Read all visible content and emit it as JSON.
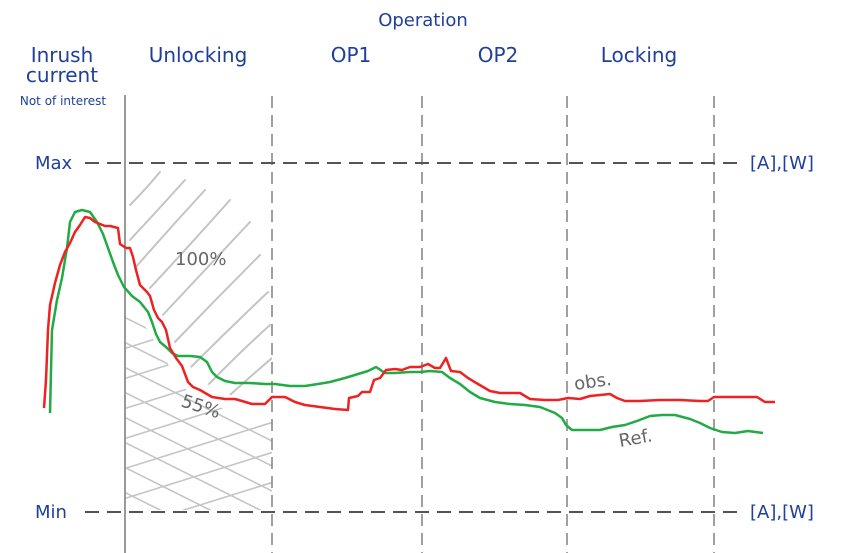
{
  "header": {
    "operation": "Operation"
  },
  "phases": {
    "inrush_line1": "Inrush",
    "inrush_line2": "current",
    "inrush_note": "Not of interest",
    "unlocking": "Unlocking",
    "op1": "OP1",
    "op2": "OP2",
    "locking": "Locking"
  },
  "levels": {
    "max": "Max",
    "min": "Min",
    "unit_top": "[A],[W]",
    "unit_bottom": "[A],[W]"
  },
  "annotations": {
    "upper_area": "100%",
    "lower_area": "55%",
    "observed": "obs.",
    "reference": "Ref."
  },
  "colors": {
    "observed": "#ee2222",
    "reference": "#22aa44",
    "text": "#1f3f9a",
    "guide": "#555555",
    "hatch": "#c4c4c4"
  }
}
